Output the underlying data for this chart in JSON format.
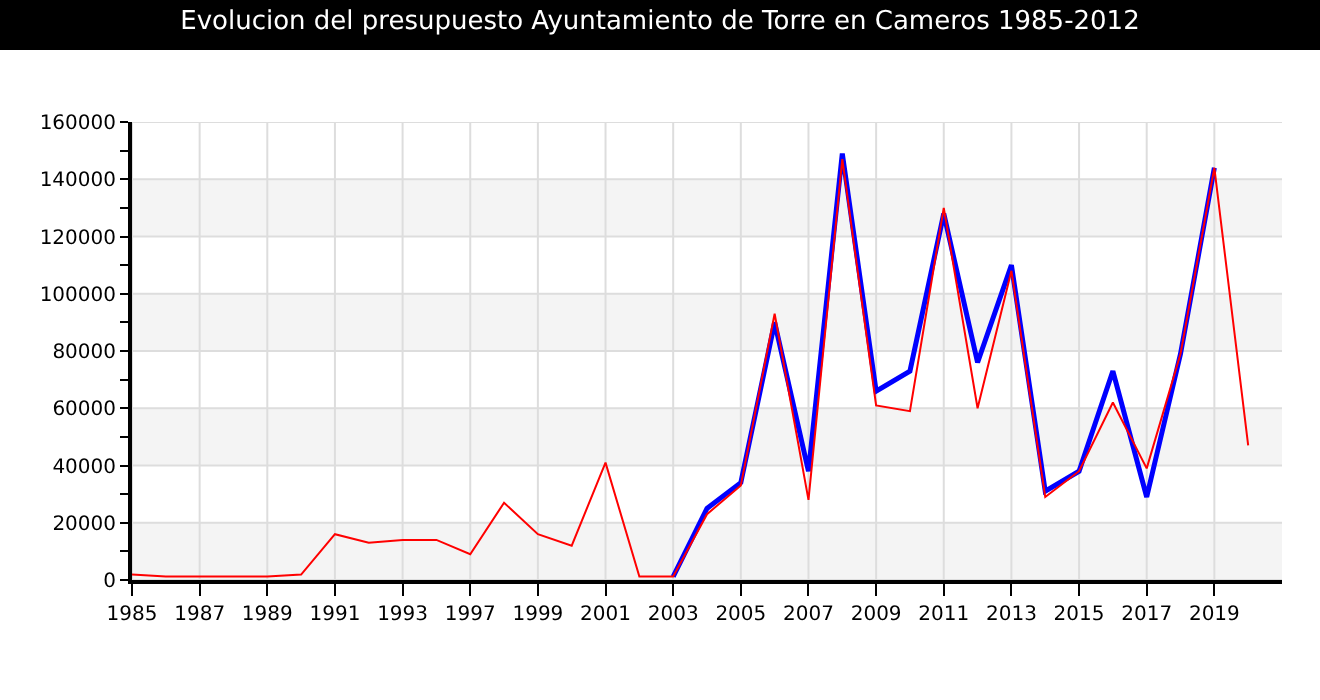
{
  "chart_data": {
    "type": "line",
    "title": "Evolucion del presupuesto Ayuntamiento de Torre en Cameros 1985-2012",
    "categories": [
      "1985",
      null,
      "1987",
      null,
      "1989",
      null,
      "1991",
      null,
      "1993",
      null,
      "1997",
      null,
      "1999",
      null,
      "2001",
      null,
      "2003",
      null,
      "2005",
      null,
      "2007",
      null,
      "2009",
      null,
      "2011",
      null,
      "2013",
      null,
      "2015",
      null,
      "2017",
      null,
      "2019",
      null
    ],
    "series": [
      {
        "color": "#0000ff",
        "values": [
          null,
          null,
          null,
          null,
          null,
          null,
          null,
          null,
          null,
          null,
          null,
          null,
          null,
          null,
          null,
          null,
          1200,
          25000,
          34000,
          90000,
          38000,
          149000,
          66000,
          73000,
          128000,
          76000,
          110000,
          31000,
          38000,
          73000,
          29000,
          79000,
          144000,
          null
        ]
      },
      {
        "color": "#ff0000",
        "values": [
          1900,
          1200,
          1200,
          1200,
          1200,
          1900,
          16000,
          13000,
          14000,
          14000,
          9000,
          27000,
          16000,
          12000,
          41000,
          1200,
          1200,
          23000,
          33000,
          93000,
          28000,
          147000,
          61000,
          59000,
          130000,
          60000,
          108000,
          29000,
          38000,
          62000,
          39000,
          79000,
          144000,
          47000
        ]
      }
    ],
    "ylim": [
      0,
      160000
    ],
    "yticks": [
      0,
      {
        "value": 10000,
        "label": null
      },
      20000,
      {
        "value": 30000,
        "label": null
      },
      40000,
      {
        "value": 50000,
        "label": null
      },
      60000,
      {
        "value": 70000,
        "label": null
      },
      80000,
      {
        "value": 90000,
        "label": null
      },
      100000,
      {
        "value": 110000,
        "label": null
      },
      120000,
      {
        "value": 130000,
        "label": null
      },
      140000,
      {
        "value": 150000,
        "label": null
      },
      160000
    ],
    "grid": true,
    "marker": "none",
    "line_style": "solid"
  }
}
